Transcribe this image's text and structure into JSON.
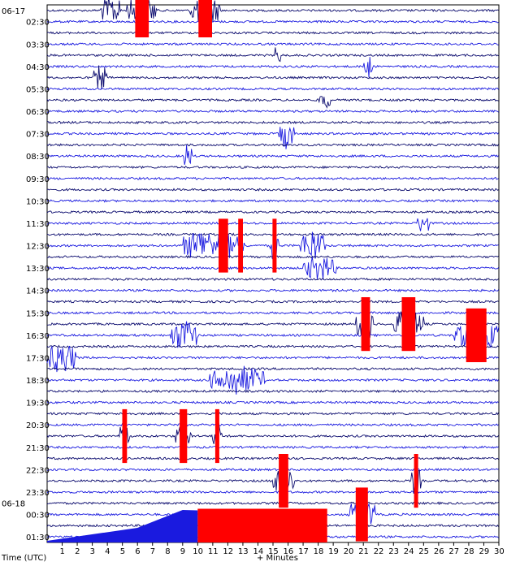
{
  "chart_data": {
    "type": "line",
    "title": "",
    "xlabel": "+ Minutes",
    "ylabel": "Time (UTC)",
    "xlim": [
      0,
      30
    ],
    "x_ticks": [
      "1",
      "2",
      "3",
      "4",
      "5",
      "6",
      "7",
      "8",
      "9",
      "10",
      "11",
      "12",
      "13",
      "14",
      "15",
      "16",
      "17",
      "18",
      "19",
      "20",
      "21",
      "22",
      "23",
      "24",
      "25",
      "26",
      "27",
      "28",
      "29",
      "30"
    ],
    "date_labels": [
      {
        "text": "06-17",
        "row": 0
      },
      {
        "text": "06-18",
        "row": 44
      }
    ],
    "row_labels": [
      {
        "text": "02:30",
        "row": 1
      },
      {
        "text": "03:30",
        "row": 3
      },
      {
        "text": "04:30",
        "row": 5
      },
      {
        "text": "05:30",
        "row": 7
      },
      {
        "text": "06:30",
        "row": 9
      },
      {
        "text": "07:30",
        "row": 11
      },
      {
        "text": "08:30",
        "row": 13
      },
      {
        "text": "09:30",
        "row": 15
      },
      {
        "text": "10:30",
        "row": 17
      },
      {
        "text": "11:30",
        "row": 19
      },
      {
        "text": "12:30",
        "row": 21
      },
      {
        "text": "13:30",
        "row": 23
      },
      {
        "text": "14:30",
        "row": 25
      },
      {
        "text": "15:30",
        "row": 27
      },
      {
        "text": "16:30",
        "row": 29
      },
      {
        "text": "17:30",
        "row": 31
      },
      {
        "text": "18:30",
        "row": 33
      },
      {
        "text": "19:30",
        "row": 35
      },
      {
        "text": "20:30",
        "row": 37
      },
      {
        "text": "21:30",
        "row": 39
      },
      {
        "text": "22:30",
        "row": 41
      },
      {
        "text": "23:30",
        "row": 43
      },
      {
        "text": "00:30",
        "row": 45
      },
      {
        "text": "01:30",
        "row": 47
      }
    ],
    "trace_count": 48,
    "trace_colors": [
      "#0b0b6e",
      "#1a1adf"
    ],
    "clip_color": "#ff0000",
    "events": [
      {
        "row": 0,
        "start_min": 3.5,
        "end_min": 5.0,
        "amp": 0.9
      },
      {
        "row": 0,
        "start_min": 5.3,
        "end_min": 7.3,
        "amp": 1.0,
        "clip": true
      },
      {
        "row": 0,
        "start_min": 9.5,
        "end_min": 11.5,
        "amp": 1.0,
        "clip": true
      },
      {
        "row": 4,
        "start_min": 15.1,
        "end_min": 15.5,
        "amp": 0.7,
        "spike": true
      },
      {
        "row": 5,
        "start_min": 21.0,
        "end_min": 21.6,
        "amp": 0.8
      },
      {
        "row": 6,
        "start_min": 3.1,
        "end_min": 4.0,
        "amp": 0.8
      },
      {
        "row": 8,
        "start_min": 18.0,
        "end_min": 18.8,
        "amp": 0.6
      },
      {
        "row": 11,
        "start_min": 15.4,
        "end_min": 16.4,
        "amp": 0.9
      },
      {
        "row": 13,
        "start_min": 9.0,
        "end_min": 9.7,
        "amp": 0.8
      },
      {
        "row": 19,
        "start_min": 24.6,
        "end_min": 25.4,
        "amp": 0.7
      },
      {
        "row": 21,
        "start_min": 9.0,
        "end_min": 11.5,
        "amp": 1.0
      },
      {
        "row": 21,
        "start_min": 11.0,
        "end_min": 12.4,
        "amp": 1.0,
        "clip": true
      },
      {
        "row": 21,
        "start_min": 12.5,
        "end_min": 13.2,
        "amp": 1.0,
        "clip": true
      },
      {
        "row": 21,
        "start_min": 14.8,
        "end_min": 15.4,
        "amp": 1.0,
        "clip": true
      },
      {
        "row": 21,
        "start_min": 16.8,
        "end_min": 18.5,
        "amp": 1.0
      },
      {
        "row": 23,
        "start_min": 17.0,
        "end_min": 19.2,
        "amp": 0.8
      },
      {
        "row": 28,
        "start_min": 20.5,
        "end_min": 21.8,
        "amp": 1.0,
        "clip": true
      },
      {
        "row": 28,
        "start_min": 23.0,
        "end_min": 25.0,
        "amp": 1.0,
        "clip": true
      },
      {
        "row": 29,
        "start_min": 8.2,
        "end_min": 10.0,
        "amp": 1.0
      },
      {
        "row": 29,
        "start_min": 27.0,
        "end_min": 30.0,
        "amp": 1.0,
        "clip": true
      },
      {
        "row": 31,
        "start_min": 0.0,
        "end_min": 2.0,
        "amp": 1.0
      },
      {
        "row": 33,
        "start_min": 10.8,
        "end_min": 14.5,
        "amp": 0.9
      },
      {
        "row": 38,
        "start_min": 4.8,
        "end_min": 5.5,
        "amp": 1.0,
        "clip": true
      },
      {
        "row": 38,
        "start_min": 8.5,
        "end_min": 9.6,
        "amp": 1.0,
        "clip": true
      },
      {
        "row": 38,
        "start_min": 11.0,
        "end_min": 11.6,
        "amp": 1.0,
        "clip": true
      },
      {
        "row": 42,
        "start_min": 15.0,
        "end_min": 16.4,
        "amp": 1.0,
        "clip": true
      },
      {
        "row": 42,
        "start_min": 24.2,
        "end_min": 24.8,
        "amp": 1.0,
        "clip": true
      },
      {
        "row": 45,
        "start_min": 20.0,
        "end_min": 21.8,
        "amp": 1.0,
        "clip": true
      }
    ],
    "grid": false,
    "legend": "none"
  }
}
